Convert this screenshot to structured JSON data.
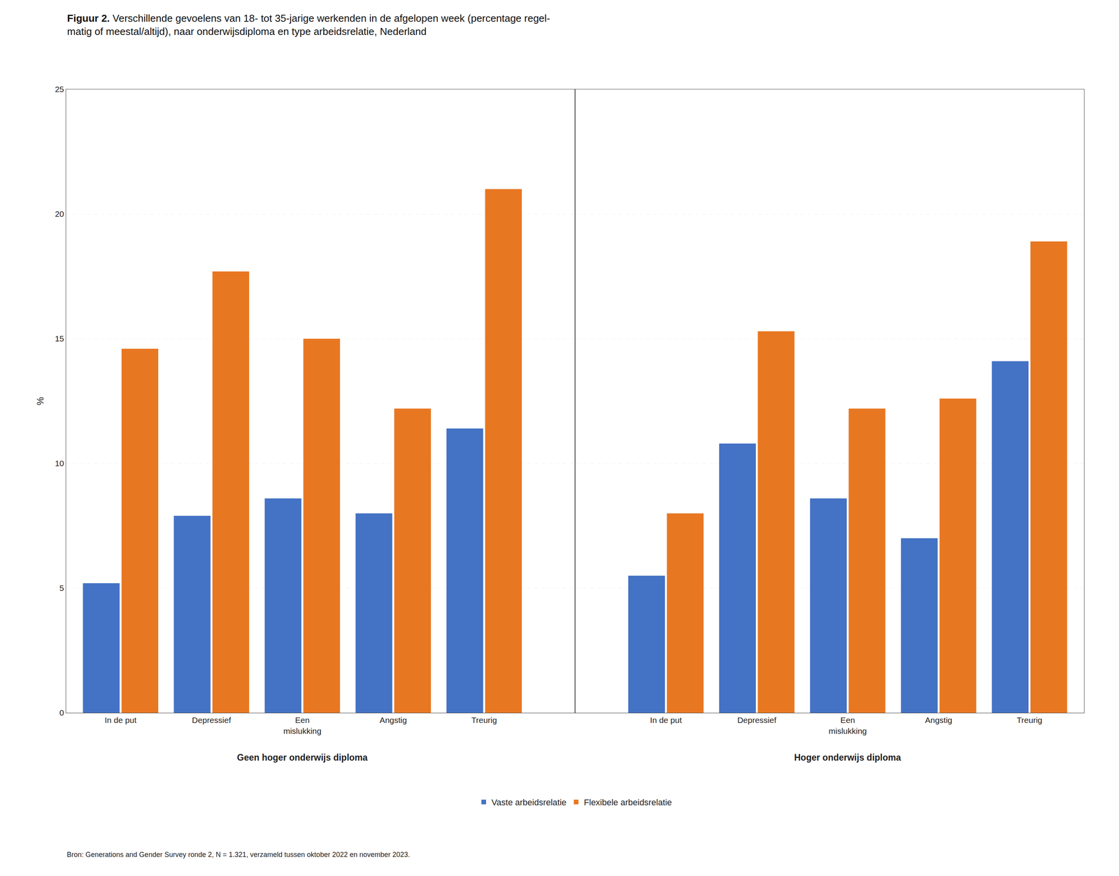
{
  "chart_data": {
    "type": "bar",
    "title": "Figuur 2. Verschillende gevoelens van 18- tot 35-jarige werkenden in de afgelopen week (percentage regel-\nmatig of meestal/altijd), naar onderwijsdiploma en type arbeidsrelatie, Nederland",
    "ylabel": "%",
    "categories": [
      "In de put",
      "Depressief",
      "Een\nmislukking",
      "Angstig",
      "Treurig",
      "In de put",
      "Depressief",
      "Een\nmislukking",
      "Angstig",
      "Treurig"
    ],
    "groups": [
      "Geen hoger onderwijs diploma",
      "Hoger onderwijs diploma"
    ],
    "series": [
      {
        "name": "Vaste arbeidsrelatie",
        "color": "#4472C4",
        "values": [
          5.2,
          7.9,
          8.6,
          8.0,
          11.4,
          5.5,
          10.8,
          8.6,
          7.0,
          14.1
        ]
      },
      {
        "name": "Flexibele arbeidsrelatie",
        "color": "#E87722",
        "values": [
          14.6,
          17.7,
          15.0,
          12.2,
          21.0,
          8.0,
          15.3,
          12.2,
          12.6,
          18.9
        ]
      }
    ],
    "ylim": [
      0,
      25
    ],
    "yticks": [
      0,
      5,
      10,
      15,
      20,
      25
    ],
    "grid": true,
    "legend": "bottom",
    "annotations": [
      "Bron: Generations and Gender Survey ronde 2, N = 1.321, verzameld tussen oktober 2022 en november 2023."
    ]
  }
}
